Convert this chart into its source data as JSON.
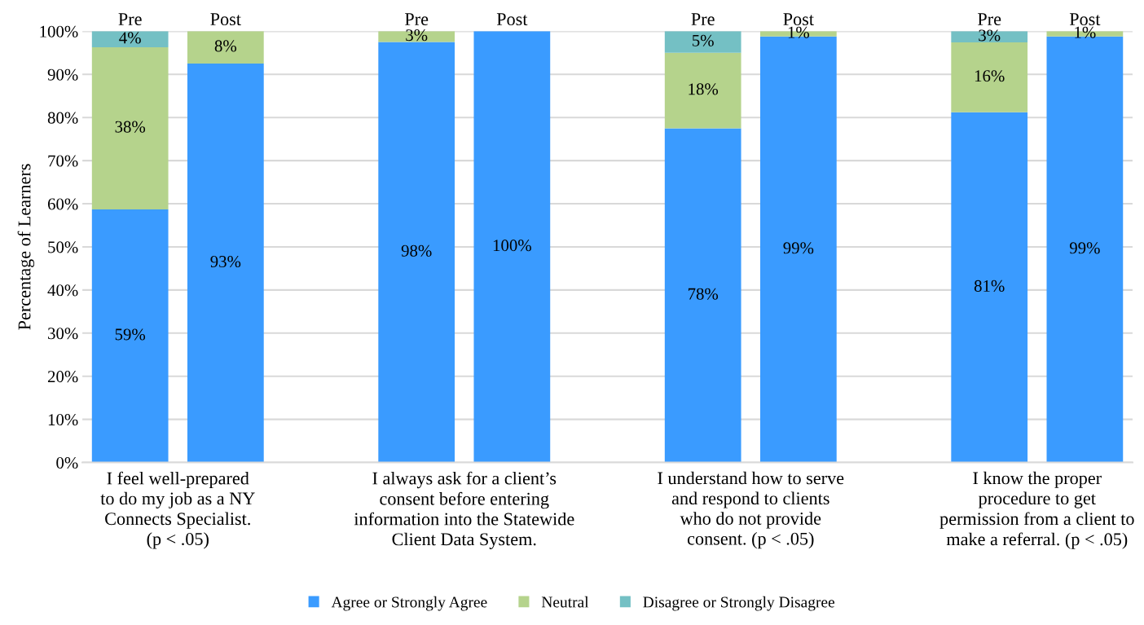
{
  "chart_data": {
    "type": "bar",
    "stacked": true,
    "ylabel": "Percentage of Learners",
    "categories": [
      "Pre",
      "Post",
      null,
      "Pre",
      "Post",
      null,
      "Pre",
      "Post",
      null,
      "Pre",
      "Post"
    ],
    "series": [
      {
        "name": "Agree or Strongly Agree",
        "color": "#3a9bff",
        "values": [
          58.7,
          92.5,
          null,
          97.5,
          100,
          null,
          77.5,
          98.8,
          null,
          81.2,
          98.8
        ],
        "value_labels": [
          "59%",
          "93%",
          null,
          "98%",
          "100%",
          null,
          "78%",
          "99%",
          null,
          "81%",
          "99%"
        ]
      },
      {
        "name": "Neutral",
        "color": "#b5d38c",
        "values": [
          37.6,
          7.5,
          null,
          2.5,
          0,
          null,
          17.5,
          1.2,
          null,
          16.2,
          1.2
        ],
        "value_labels": [
          "38%",
          "8%",
          null,
          "3%",
          null,
          null,
          "18%",
          "1%",
          null,
          "16%",
          "1%"
        ]
      },
      {
        "name": "Disagree or Strongly Disagree",
        "color": "#74c0c4",
        "values": [
          3.7,
          0,
          null,
          0,
          0,
          null,
          5,
          0,
          null,
          2.6,
          0
        ],
        "value_labels": [
          "4%",
          null,
          null,
          null,
          null,
          null,
          "5%",
          null,
          null,
          "3%",
          null
        ]
      }
    ],
    "ylim": [
      0,
      100
    ],
    "yticks": [
      {
        "value": 0,
        "label": "0%"
      },
      {
        "value": 10,
        "label": "10%"
      },
      {
        "value": 20,
        "label": "20%"
      },
      {
        "value": 30,
        "label": "30%"
      },
      {
        "value": 40,
        "label": "40%"
      },
      {
        "value": 50,
        "label": "50%"
      },
      {
        "value": 60,
        "label": "60%"
      },
      {
        "value": 70,
        "label": "70%"
      },
      {
        "value": 80,
        "label": "80%"
      },
      {
        "value": 90,
        "label": "90%"
      },
      {
        "value": 100,
        "label": "100%"
      }
    ],
    "grid": "y",
    "legend": "bottom",
    "annotations": [
      "I feel well-prepared\nto do my job as a NY\nConnects Specialist.\n(p < .05)",
      "I always ask for a client’s\nconsent before entering\ninformation into the Statewide\nClient Data System.",
      "I understand how to serve\nand respond to clients\nwho do not provide\nconsent. (p < .05)",
      "I know the proper\nprocedure to get\npermission from a client to\nmake a referral. (p < .05)"
    ]
  }
}
